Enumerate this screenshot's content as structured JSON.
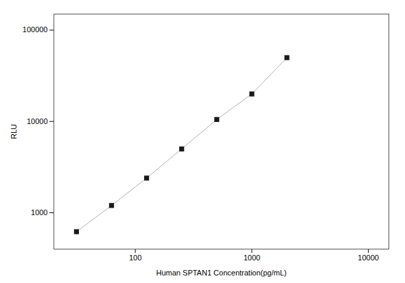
{
  "chart_data": {
    "type": "line",
    "x": [
      31.25,
      62.5,
      125,
      250,
      500,
      1000,
      2000
    ],
    "values": [
      620,
      1200,
      2400,
      5000,
      10500,
      20000,
      50000
    ],
    "xlabel": "Human SPTAN1 Concentration(pg/mL)",
    "ylabel": "RLU",
    "xlim": [
      20,
      15000
    ],
    "ylim": [
      400,
      150000
    ],
    "xticks": [
      100,
      1000,
      10000
    ],
    "yticks": [
      1000,
      10000,
      100000
    ],
    "log": true,
    "grid": false,
    "color": "#b0b0b0",
    "marker": "square"
  }
}
